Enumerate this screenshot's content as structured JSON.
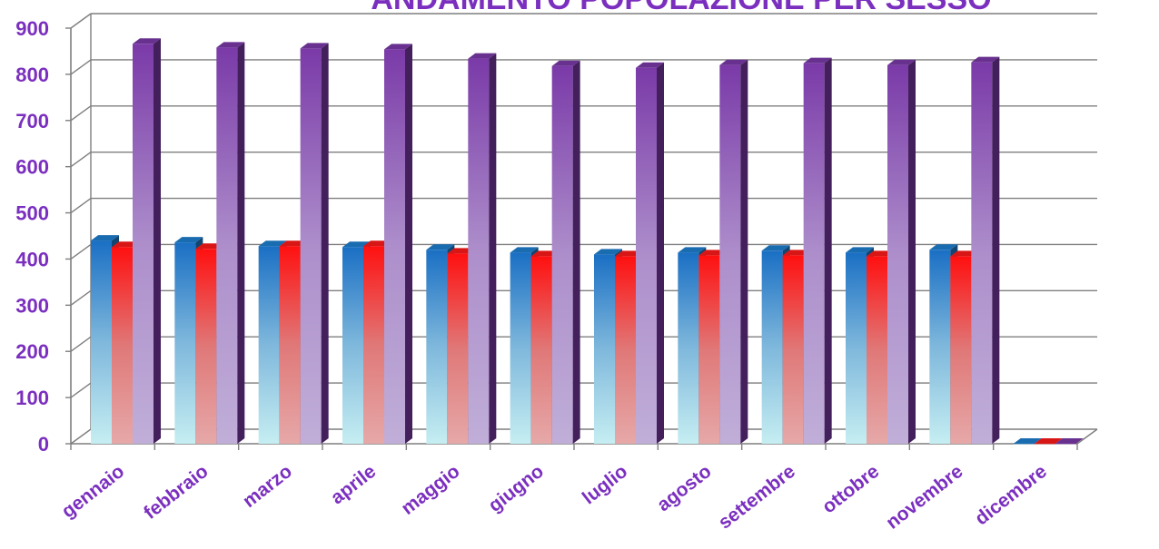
{
  "chart_data": {
    "type": "bar",
    "title": "ANDAMENTO POPOLAZIONE PER SESSO",
    "xlabel": "",
    "ylabel": "",
    "ylim": [
      0,
      900
    ],
    "yticks": [
      0,
      100,
      200,
      300,
      400,
      500,
      600,
      700,
      800,
      900
    ],
    "grid": true,
    "legend": "none",
    "categories": [
      "gennaio",
      "febbraio",
      "marzo",
      "aprile",
      "maggio",
      "giugno",
      "luglio",
      "agosto",
      "settembre",
      "ottobre",
      "novembre",
      "dicembre"
    ],
    "series": [
      {
        "color": "#1f7fd0",
        "values": [
          440,
          436,
          428,
          426,
          420,
          414,
          410,
          414,
          418,
          414,
          420,
          0
        ]
      },
      {
        "color": "#ff1a1a",
        "values": [
          426,
          422,
          428,
          428,
          412,
          406,
          406,
          408,
          408,
          406,
          406,
          0
        ]
      },
      {
        "color": "#7a3aa8",
        "values": [
          866,
          858,
          856,
          854,
          834,
          818,
          814,
          820,
          824,
          820,
          826,
          0
        ]
      }
    ]
  }
}
